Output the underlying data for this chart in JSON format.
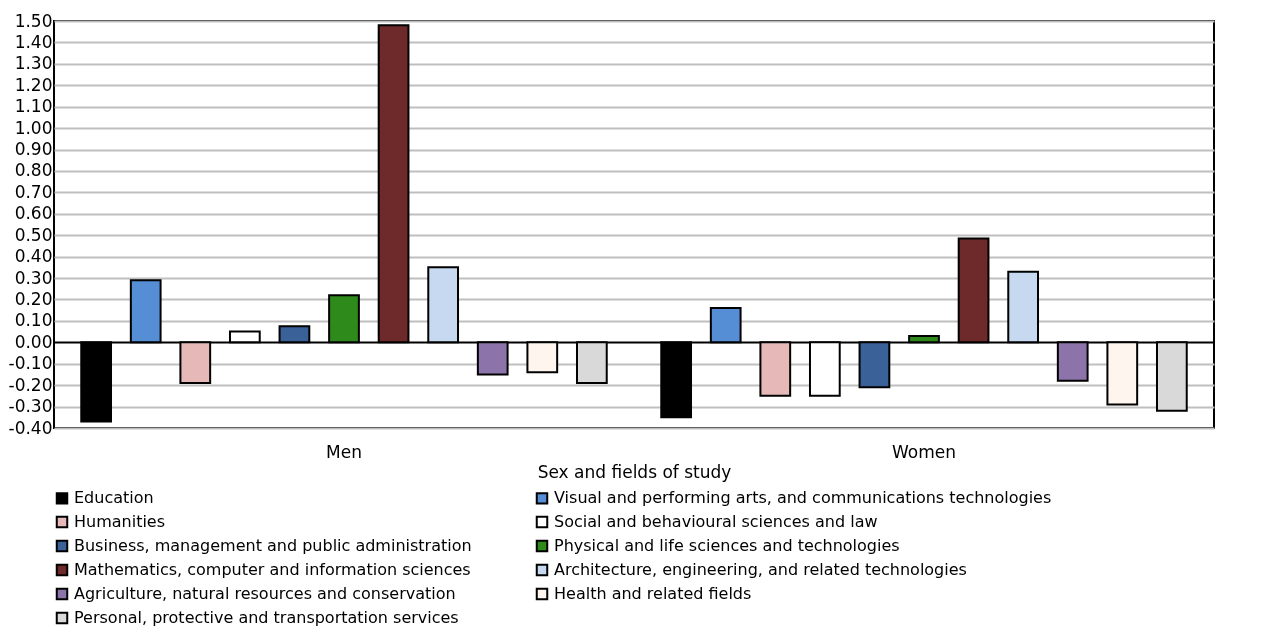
{
  "chart_data": {
    "type": "bar",
    "xlabel": "Sex and fields of study",
    "categories": [
      "Men",
      "Women"
    ],
    "series": [
      {
        "name": "Education",
        "color": "#000000",
        "values": [
          -0.37,
          -0.35
        ]
      },
      {
        "name": "Visual and performing arts, and communications technologies",
        "color": "#558ed5",
        "values": [
          0.29,
          0.16
        ]
      },
      {
        "name": "Humanities",
        "color": "#e6b9b8",
        "values": [
          -0.19,
          -0.25
        ]
      },
      {
        "name": "Social and behavioural sciences and law",
        "color": "#ffffff",
        "values": [
          0.05,
          -0.25
        ]
      },
      {
        "name": "Business, management and public administration",
        "color": "#3a6298",
        "values": [
          0.075,
          -0.21
        ]
      },
      {
        "name": "Physical and life sciences and technologies",
        "color": "#2f8a1c",
        "values": [
          0.22,
          0.03
        ]
      },
      {
        "name": "Mathematics, computer and information sciences",
        "color": "#6e2a2a",
        "values": [
          1.48,
          0.485
        ]
      },
      {
        "name": "Architecture, engineering, and related technologies",
        "color": "#c6d9f1",
        "values": [
          0.35,
          0.33
        ]
      },
      {
        "name": "Agriculture, natural resources and conservation",
        "color": "#8c74aa",
        "values": [
          -0.15,
          -0.18
        ]
      },
      {
        "name": "Health and related fields",
        "color": "#fdf5ee",
        "values": [
          -0.14,
          -0.29
        ]
      },
      {
        "name": "Personal, protective and transportation services",
        "color": "#d9d9d9",
        "values": [
          -0.19,
          -0.32
        ]
      }
    ],
    "ylim": [
      -0.4,
      1.5
    ],
    "yticks": [
      {
        "value": -0.4,
        "label": "-0.40"
      },
      {
        "value": -0.3,
        "label": "-0.30"
      },
      {
        "value": -0.2,
        "label": "-0.20"
      },
      {
        "value": -0.1,
        "label": "-0.10"
      },
      {
        "value": 0,
        "label": "0.00"
      },
      {
        "value": 0.1,
        "label": "0.10"
      },
      {
        "value": 0.2,
        "label": "0.20"
      },
      {
        "value": 0.3,
        "label": "0.30"
      },
      {
        "value": 0.4,
        "label": "0.40"
      },
      {
        "value": 0.5,
        "label": "0.50"
      },
      {
        "value": 0.6,
        "label": "0.60"
      },
      {
        "value": 0.7,
        "label": "0.70"
      },
      {
        "value": 0.8,
        "label": "0.80"
      },
      {
        "value": 0.9,
        "label": "0.90"
      },
      {
        "value": 1,
        "label": "1.00"
      },
      {
        "value": 1.1,
        "label": "1.10"
      },
      {
        "value": 1.2,
        "label": "1.20"
      },
      {
        "value": 1.3,
        "label": "1.30"
      },
      {
        "value": 1.4,
        "label": "1.40"
      },
      {
        "value": 1.5,
        "label": "1.50"
      }
    ],
    "grid": "y",
    "legend": "bottom"
  }
}
